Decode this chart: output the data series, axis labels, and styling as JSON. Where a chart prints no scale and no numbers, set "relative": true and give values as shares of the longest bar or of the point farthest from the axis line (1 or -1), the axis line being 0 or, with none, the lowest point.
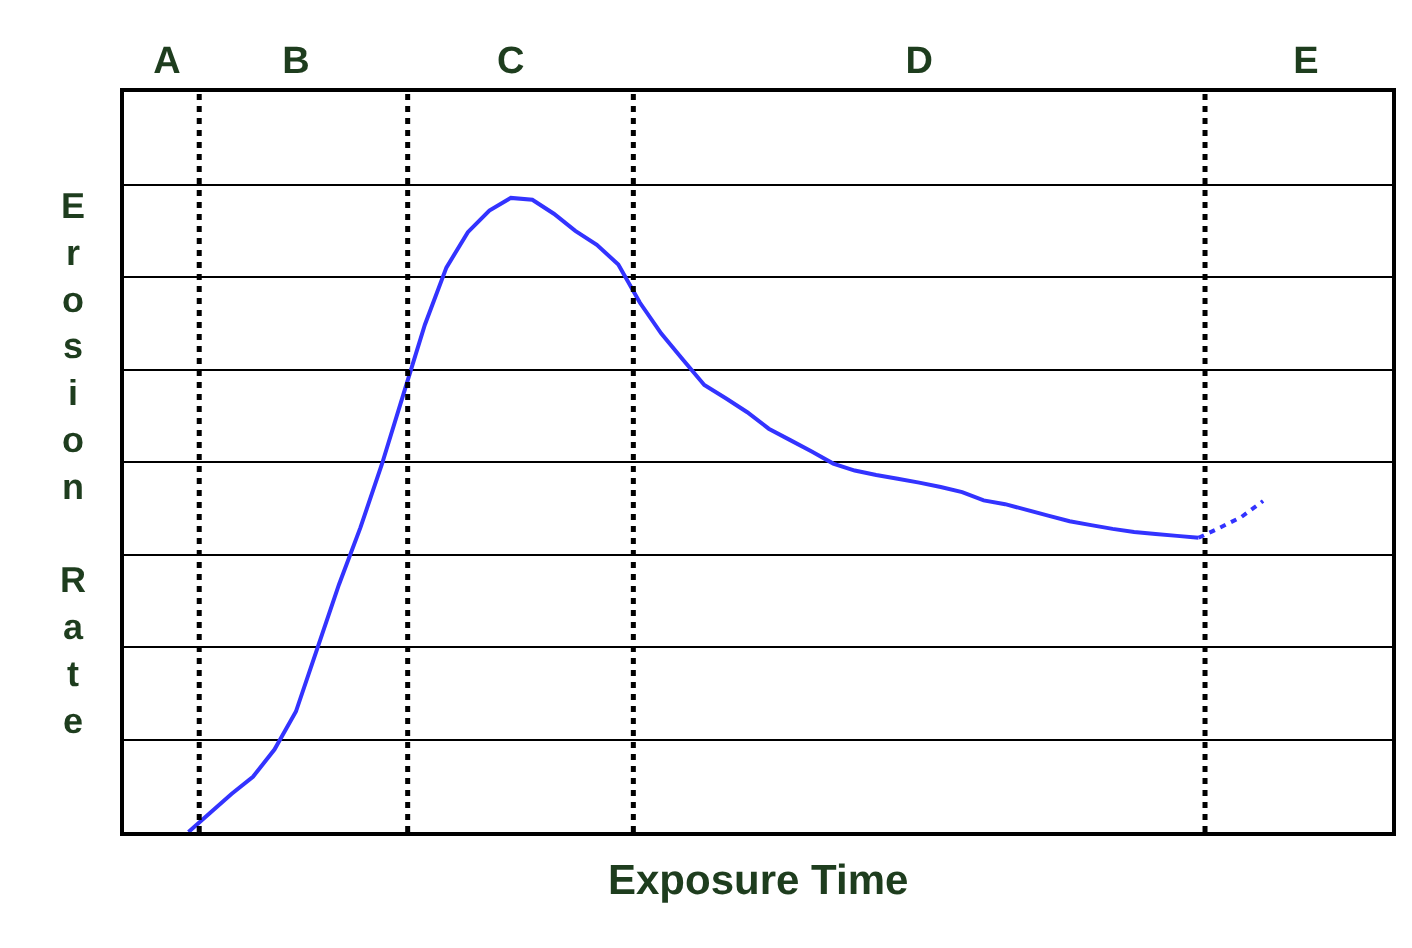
{
  "chart_data": {
    "type": "line",
    "relative": true,
    "xlabel": "Exposure Time",
    "ylabel": "Erosion Rate",
    "categories": [
      null,
      null,
      "A",
      null,
      null,
      null,
      null,
      null,
      "B",
      null,
      null,
      null,
      null,
      null,
      null,
      null,
      null,
      null,
      "C",
      null,
      null,
      null,
      null,
      null,
      null,
      null,
      null,
      null,
      null,
      null,
      null,
      null,
      null,
      null,
      null,
      null,
      null,
      "D",
      null,
      null,
      null,
      null,
      null,
      null,
      null,
      null,
      null,
      null,
      null,
      null,
      null,
      null,
      null,
      null,
      null,
      "E",
      null,
      null,
      null,
      null
    ],
    "tick_labels": "x",
    "grid": "y",
    "marker": "none",
    "series": [
      {
        "color": "#3333ff",
        "line_style": "solid",
        "values": [
          null,
          null,
          null,
          0.0,
          0.03,
          0.06,
          0.087,
          0.13,
          0.19,
          0.29,
          0.39,
          0.48,
          0.58,
          0.69,
          0.8,
          0.89,
          0.946,
          0.98,
          1,
          0.997,
          0.975,
          0.948,
          0.926,
          0.895,
          0.835,
          0.786,
          0.745,
          0.705,
          0.684,
          0.662,
          0.636,
          0.618,
          0.6,
          0.581,
          0.57,
          0.563,
          0.557,
          0.551,
          0.544,
          0.536,
          0.523,
          0.517,
          0.508,
          0.499,
          0.49,
          0.484,
          0.478,
          0.473,
          0.47,
          0.467,
          0.464,
          null,
          null,
          null,
          null,
          null,
          null,
          null,
          null,
          null
        ]
      },
      {
        "color": "#3333ff",
        "line_style": "dotted",
        "values": [
          null,
          null,
          null,
          null,
          null,
          null,
          null,
          null,
          null,
          null,
          null,
          null,
          null,
          null,
          null,
          null,
          null,
          null,
          null,
          null,
          null,
          null,
          null,
          null,
          null,
          null,
          null,
          null,
          null,
          null,
          null,
          null,
          null,
          null,
          null,
          null,
          null,
          null,
          null,
          null,
          null,
          null,
          null,
          null,
          null,
          null,
          null,
          null,
          null,
          null,
          0.464,
          0.48,
          0.497,
          0.522,
          null,
          null,
          null,
          null,
          null,
          null
        ]
      }
    ]
  }
}
